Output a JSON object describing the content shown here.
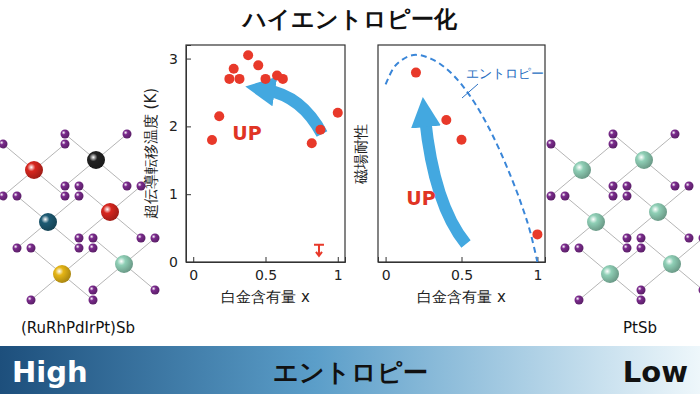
{
  "title": "ハイエントロピー化",
  "chart_data": [
    {
      "type": "scatter",
      "x_label": "白金含有量 x",
      "y_label": "超伝導転移温度 (K)",
      "xlim": [
        -0.05,
        1.05
      ],
      "ylim": [
        0,
        3.2
      ],
      "xticks": [
        0,
        0.5,
        1
      ],
      "yticks": [
        0,
        1,
        2,
        3
      ],
      "series": [
        {
          "color": "#e8392a",
          "marker": "circle",
          "x": [
            0.13,
            0.18,
            0.25,
            0.28,
            0.32,
            0.38,
            0.45,
            0.5,
            0.58,
            0.62,
            0.82,
            0.88,
            1.0
          ],
          "values": [
            1.8,
            2.15,
            2.7,
            2.85,
            2.7,
            3.05,
            2.9,
            2.7,
            2.75,
            2.7,
            1.75,
            1.95,
            2.2
          ]
        },
        {
          "color": "#e8392a",
          "marker": "T",
          "x": [
            0.87
          ],
          "values": [
            0.15
          ]
        }
      ],
      "annotations": [
        "UP"
      ]
    },
    {
      "type": "scatter",
      "x_label": "白金含有量 x",
      "y_label": "磁場耐性",
      "xlim": [
        -0.05,
        1.05
      ],
      "ylim": [
        0,
        1.1
      ],
      "xticks": [
        0,
        0.5,
        1
      ],
      "tick_labels": "x",
      "series": [
        {
          "type": "line",
          "color": "#3a86d8",
          "line_style": "dashed",
          "x": [
            0,
            0.05,
            0.1,
            0.2,
            0.3,
            0.4,
            0.5,
            0.6,
            0.7,
            0.8,
            0.9,
            0.95,
            1.0
          ],
          "values": [
            0.9,
            0.98,
            1.02,
            1.05,
            1.03,
            0.98,
            0.9,
            0.79,
            0.65,
            0.48,
            0.28,
            0.16,
            0
          ]
        },
        {
          "type": "scatter",
          "color": "#e8392a",
          "marker": "circle",
          "x": [
            0.2,
            0.4,
            0.5,
            1.0
          ],
          "values": [
            0.96,
            0.72,
            0.62,
            0.14
          ]
        }
      ],
      "annotations": [
        "エントロピー",
        "UP"
      ]
    }
  ],
  "structures": [
    "(RuRhPdIrPt)Sb",
    "PtSb"
  ],
  "footer": {
    "left": "High",
    "center": "エントロピー",
    "right": "Low"
  }
}
